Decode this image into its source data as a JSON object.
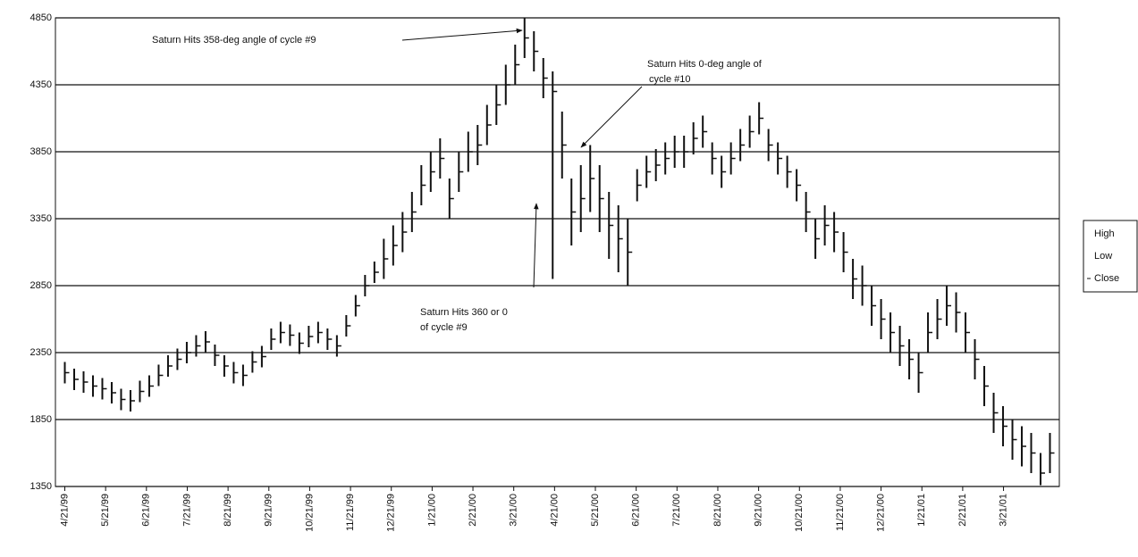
{
  "chart_data": {
    "type": "stock",
    "color": "#111111",
    "grid": true,
    "legend": "right",
    "annotations": [
      {
        "lines": [
          "Saturn Hits 358-deg angle of cycle #9"
        ]
      },
      {
        "lines": [
          "Saturn Hits 0-deg angle of",
          "cycle #10"
        ]
      },
      {
        "lines": [
          "Saturn Hits 360 or 0",
          "of cycle #9"
        ]
      }
    ],
    "ylim": [
      1350,
      4850
    ],
    "yticks": [
      1350,
      1850,
      2350,
      2850,
      3350,
      3850,
      4350,
      4850
    ],
    "xlim": [
      -1,
      106
    ],
    "xticks": [
      {
        "value": 0,
        "label": "4/21/99"
      },
      {
        "value": 4.35,
        "label": "5/21/99"
      },
      {
        "value": 8.7,
        "label": "6/21/99"
      },
      {
        "value": 13.05,
        "label": "7/21/99"
      },
      {
        "value": 17.4,
        "label": "8/21/99"
      },
      {
        "value": 21.75,
        "label": "9/21/99"
      },
      {
        "value": 26.1,
        "label": "10/21/99"
      },
      {
        "value": 30.45,
        "label": "11/21/99"
      },
      {
        "value": 34.8,
        "label": "12/21/99"
      },
      {
        "value": 39.15,
        "label": "1/21/00"
      },
      {
        "value": 43.5,
        "label": "2/21/00"
      },
      {
        "value": 47.85,
        "label": "3/21/00"
      },
      {
        "value": 52.2,
        "label": "4/21/00"
      },
      {
        "value": 56.55,
        "label": "5/21/00"
      },
      {
        "value": 60.9,
        "label": "6/21/00"
      },
      {
        "value": 65.25,
        "label": "7/21/00"
      },
      {
        "value": 69.6,
        "label": "8/21/00"
      },
      {
        "value": 73.95,
        "label": "9/21/00"
      },
      {
        "value": 78.3,
        "label": "10/21/00"
      },
      {
        "value": 82.65,
        "label": "11/21/00"
      },
      {
        "value": 87,
        "label": "12/21/00"
      },
      {
        "value": 91.35,
        "label": "1/21/01"
      },
      {
        "value": 95.7,
        "label": "2/21/01"
      },
      {
        "value": 100.05,
        "label": "3/21/01"
      }
    ],
    "series": [
      {
        "name": "High",
        "values": [
          2280,
          2230,
          2210,
          2180,
          2160,
          2130,
          2080,
          2070,
          2140,
          2180,
          2260,
          2330,
          2380,
          2430,
          2480,
          2510,
          2410,
          2330,
          2280,
          2260,
          2360,
          2400,
          2530,
          2580,
          2560,
          2500,
          2550,
          2580,
          2530,
          2480,
          2630,
          2780,
          2930,
          3030,
          3200,
          3300,
          3400,
          3550,
          3750,
          3850,
          3950,
          3650,
          3850,
          4000,
          4050,
          4200,
          4350,
          4500,
          4650,
          4850,
          4750,
          4550,
          4450,
          4150,
          3650,
          3750,
          3900,
          3750,
          3550,
          3450,
          3350,
          3720,
          3820,
          3870,
          3920,
          3970,
          3970,
          4070,
          4120,
          3920,
          3820,
          3920,
          4020,
          4120,
          4220,
          4020,
          3920,
          3820,
          3720,
          3550,
          3350,
          3450,
          3400,
          3250,
          3050,
          3000,
          2850,
          2750,
          2650,
          2550,
          2450,
          2350,
          2650,
          2750,
          2850,
          2800,
          2650,
          2450,
          2250,
          2050,
          1950,
          1850,
          1800,
          1750,
          1600,
          1750
        ]
      },
      {
        "name": "Low",
        "values": [
          2120,
          2070,
          2050,
          2020,
          2000,
          1970,
          1920,
          1910,
          1980,
          2020,
          2100,
          2170,
          2220,
          2270,
          2320,
          2350,
          2250,
          2170,
          2120,
          2100,
          2200,
          2240,
          2370,
          2420,
          2400,
          2340,
          2390,
          2420,
          2370,
          2320,
          2470,
          2620,
          2770,
          2870,
          2900,
          3000,
          3100,
          3250,
          3450,
          3550,
          3650,
          3350,
          3550,
          3700,
          3750,
          3900,
          4050,
          4200,
          4350,
          4550,
          4450,
          4250,
          2900,
          3650,
          3150,
          3250,
          3400,
          3250,
          3050,
          2950,
          2850,
          3480,
          3580,
          3630,
          3680,
          3730,
          3730,
          3830,
          3880,
          3680,
          3580,
          3680,
          3780,
          3880,
          3980,
          3780,
          3680,
          3580,
          3480,
          3250,
          3050,
          3150,
          3100,
          2950,
          2750,
          2700,
          2550,
          2450,
          2350,
          2250,
          2150,
          2050,
          2350,
          2450,
          2550,
          2500,
          2350,
          2150,
          1950,
          1750,
          1650,
          1550,
          1500,
          1450,
          1360,
          1450
        ]
      },
      {
        "name": "Close",
        "values": [
          2200,
          2150,
          2130,
          2100,
          2080,
          2050,
          2000,
          1990,
          2060,
          2100,
          2180,
          2250,
          2300,
          2350,
          2400,
          2430,
          2330,
          2250,
          2200,
          2180,
          2280,
          2320,
          2450,
          2500,
          2480,
          2420,
          2470,
          2500,
          2450,
          2400,
          2550,
          2700,
          2850,
          2950,
          3050,
          3150,
          3250,
          3400,
          3600,
          3700,
          3800,
          3500,
          3700,
          3850,
          3900,
          4050,
          4200,
          4350,
          4500,
          4700,
          4600,
          4400,
          4300,
          3900,
          3400,
          3500,
          3650,
          3500,
          3300,
          3200,
          3100,
          3600,
          3700,
          3750,
          3800,
          3850,
          3850,
          3950,
          4000,
          3800,
          3700,
          3800,
          3900,
          4000,
          4100,
          3900,
          3800,
          3700,
          3600,
          3400,
          3200,
          3300,
          3250,
          3100,
          2900,
          2850,
          2700,
          2600,
          2500,
          2400,
          2300,
          2200,
          2500,
          2600,
          2700,
          2650,
          2500,
          2300,
          2100,
          1900,
          1800,
          1700,
          1650,
          1600,
          1450,
          1600
        ]
      }
    ]
  }
}
